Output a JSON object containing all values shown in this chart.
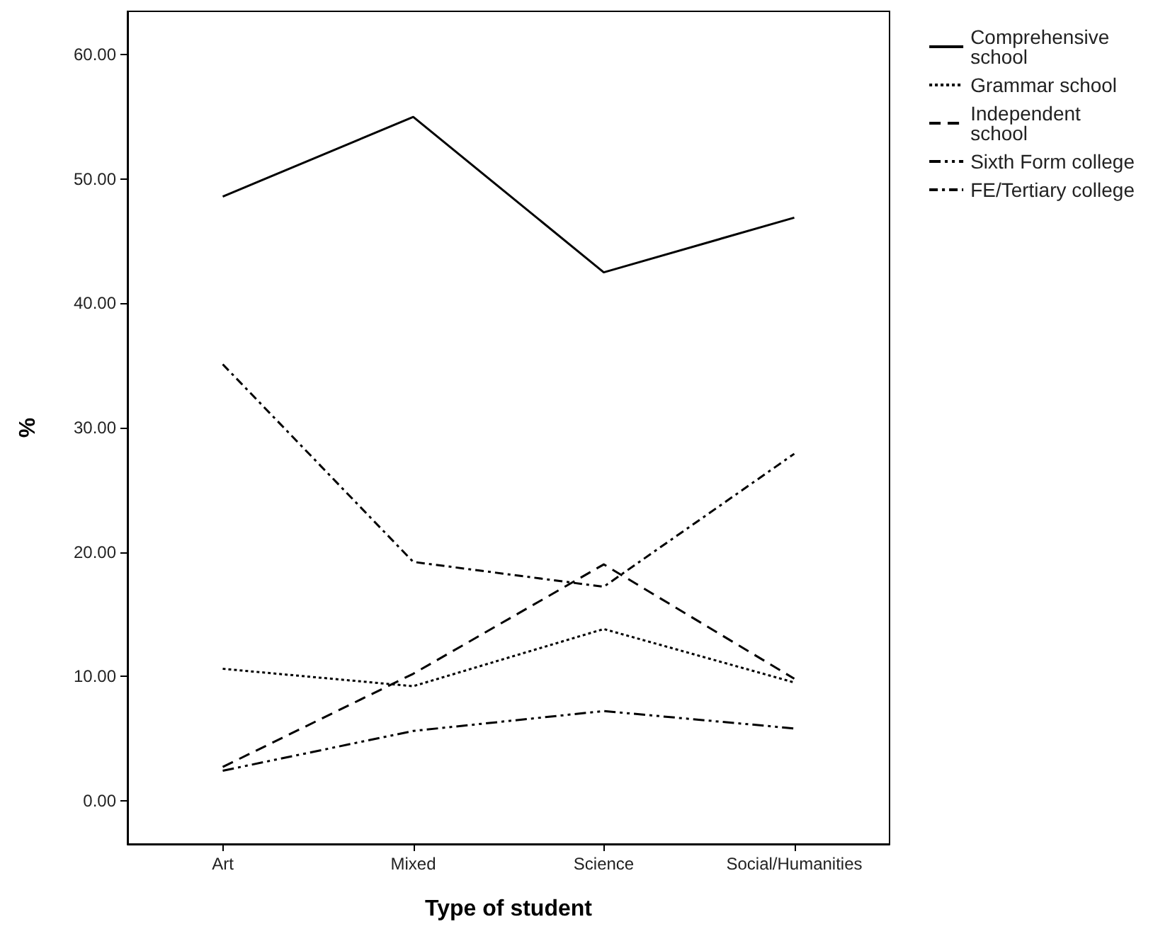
{
  "chart_data": {
    "type": "line",
    "xlabel": "Type of student",
    "ylabel": "%",
    "categories": [
      "Art",
      "Mixed",
      "Science",
      "Social/Humanities"
    ],
    "series": [
      {
        "name": "Comprehensive school",
        "color": "#000000",
        "line_style": "solid",
        "values": [
          48.6,
          55.0,
          42.5,
          46.9
        ]
      },
      {
        "name": "Grammar school",
        "color": "#000000",
        "line_style": "dotted",
        "values": [
          10.6,
          9.2,
          13.8,
          9.5
        ]
      },
      {
        "name": "Independent school",
        "color": "#000000",
        "line_style": "dashed",
        "values": [
          2.7,
          10.2,
          19.0,
          9.8
        ]
      },
      {
        "name": "Sixth Form college",
        "color": "#000000",
        "line_style": "dashdotdot",
        "values": [
          2.4,
          5.6,
          7.2,
          5.8
        ]
      },
      {
        "name": "FE/Tertiary college",
        "color": "#000000",
        "line_style": "dashdot",
        "values": [
          35.1,
          19.2,
          17.2,
          27.9
        ]
      }
    ],
    "ylim": [
      -3.5,
      63.5
    ],
    "yticks": [
      {
        "value": 0,
        "label": "0.00"
      },
      {
        "value": 10,
        "label": "10.00"
      },
      {
        "value": 20,
        "label": "20.00"
      },
      {
        "value": 30,
        "label": "30.00"
      },
      {
        "value": 40,
        "label": "40.00"
      },
      {
        "value": 50,
        "label": "50.00"
      },
      {
        "value": 60,
        "label": "60.00"
      }
    ],
    "grid": false,
    "legend": "right",
    "marker": "none"
  }
}
